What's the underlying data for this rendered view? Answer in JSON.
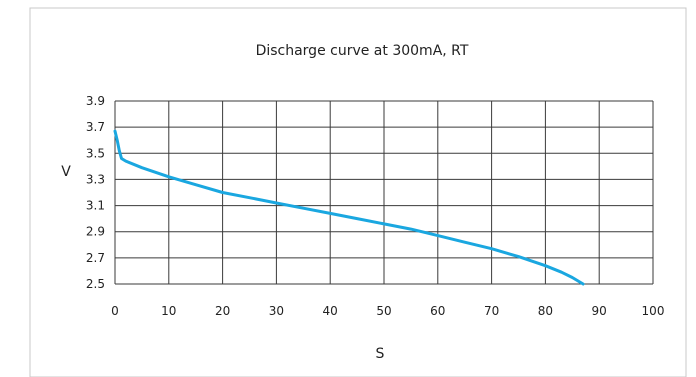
{
  "chart_data": {
    "type": "line",
    "title": "Discharge curve at 300mA, RT",
    "xlabel": "S",
    "ylabel": "V",
    "xlim": [
      0,
      100
    ],
    "ylim": [
      2.5,
      3.9
    ],
    "x_ticks": [
      "0",
      "10",
      "20",
      "30",
      "40",
      "50",
      "60",
      "70",
      "80",
      "90",
      "100"
    ],
    "y_ticks": [
      "2.5",
      "2.7",
      "2.9",
      "3.1",
      "3.3",
      "3.5",
      "3.7",
      "3.9"
    ],
    "grid": true,
    "series": [
      {
        "color": "#1aa7e0",
        "x": [
          0,
          0.4,
          0.8,
          1.2,
          2,
          5,
          10,
          15,
          20,
          25,
          30,
          35,
          40,
          45,
          50,
          55,
          60,
          65,
          70,
          75,
          80,
          83,
          85,
          87
        ],
        "y": [
          3.67,
          3.6,
          3.52,
          3.46,
          3.44,
          3.39,
          3.32,
          3.26,
          3.2,
          3.16,
          3.12,
          3.08,
          3.04,
          3.0,
          2.96,
          2.92,
          2.87,
          2.82,
          2.77,
          2.71,
          2.64,
          2.59,
          2.55,
          2.5
        ]
      }
    ]
  }
}
